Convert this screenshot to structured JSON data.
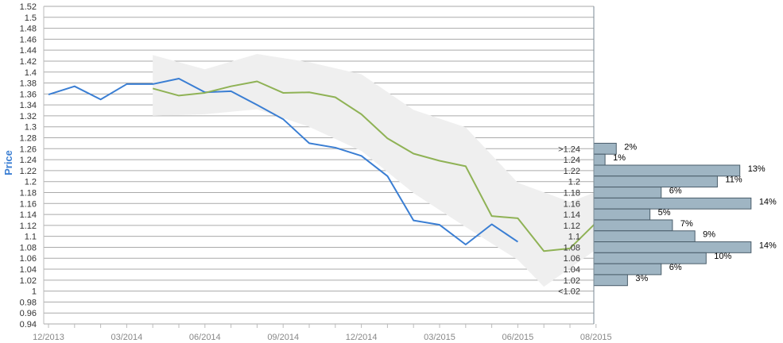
{
  "chart_data": {
    "type": "line",
    "ylabel": "Price",
    "ylim": [
      0.94,
      1.52
    ],
    "y_ticks": [
      "1.52",
      "1.5",
      "1.48",
      "1.46",
      "1.44",
      "1.42",
      "1.4",
      "1.38",
      "1.36",
      "1.34",
      "1.32",
      "1.3",
      "1.28",
      "1.26",
      "1.24",
      "1.22",
      "1.2",
      "1.18",
      "1.16",
      "1.14",
      "1.12",
      "1.1",
      "1.08",
      "1.06",
      "1.04",
      "1.02",
      "1",
      "0.98",
      "0.96",
      "0.94"
    ],
    "x_ticks": [
      "12/2013",
      "03/2014",
      "06/2014",
      "09/2014",
      "12/2014",
      "03/2015",
      "06/2015",
      "08/2015"
    ],
    "grid": true,
    "colors": {
      "actual": "#3a7ed3",
      "forecast": "#8fb255",
      "band": "#efefef",
      "bars": "#9fb5c3",
      "bar_border": "#4a5d6a",
      "grid": "#aaaaaa"
    },
    "series": [
      {
        "role": "actual",
        "points": [
          [
            0,
            1.359
          ],
          [
            1,
            1.374
          ],
          [
            2,
            1.35
          ],
          [
            3,
            1.378
          ],
          [
            4,
            1.378
          ],
          [
            5,
            1.388
          ],
          [
            6,
            1.363
          ],
          [
            7,
            1.365
          ],
          [
            8,
            1.34
          ],
          [
            9,
            1.314
          ],
          [
            10,
            1.27
          ],
          [
            11,
            1.262
          ],
          [
            12,
            1.247
          ],
          [
            13,
            1.21
          ],
          [
            14,
            1.129
          ],
          [
            15,
            1.121
          ],
          [
            16,
            1.085
          ],
          [
            17,
            1.122
          ],
          [
            18,
            1.09
          ]
        ]
      },
      {
        "role": "forecast",
        "points": [
          [
            4,
            1.37
          ],
          [
            5,
            1.357
          ],
          [
            6,
            1.362
          ],
          [
            7,
            1.374
          ],
          [
            8,
            1.383
          ],
          [
            9,
            1.362
          ],
          [
            10,
            1.363
          ],
          [
            11,
            1.354
          ],
          [
            12,
            1.323
          ],
          [
            13,
            1.279
          ],
          [
            14,
            1.251
          ],
          [
            15,
            1.238
          ],
          [
            16,
            1.228
          ],
          [
            17,
            1.137
          ],
          [
            18,
            1.133
          ],
          [
            19,
            1.073
          ],
          [
            20,
            1.078
          ],
          [
            21,
            1.125
          ]
        ]
      }
    ],
    "band": {
      "upper": [
        [
          4,
          1.431
        ],
        [
          6,
          1.405
        ],
        [
          8,
          1.433
        ],
        [
          10,
          1.418
        ],
        [
          12,
          1.396
        ],
        [
          14,
          1.331
        ],
        [
          16,
          1.299
        ],
        [
          18,
          1.198
        ],
        [
          20,
          1.163
        ],
        [
          21,
          1.181
        ]
      ],
      "lower": [
        [
          4,
          1.32
        ],
        [
          6,
          1.323
        ],
        [
          8,
          1.332
        ],
        [
          10,
          1.3
        ],
        [
          12,
          1.256
        ],
        [
          14,
          1.179
        ],
        [
          16,
          1.117
        ],
        [
          18,
          1.057
        ],
        [
          19,
          1.008
        ],
        [
          21,
          1.076
        ]
      ]
    },
    "distribution": {
      "categories": [
        ">1.24",
        "1.24",
        "1.22",
        "1.2",
        "1.18",
        "1.16",
        "1.14",
        "1.12",
        "1.1",
        "1.08",
        "1.06",
        "1.04",
        "1.02",
        "<1.02"
      ],
      "values": [
        2,
        1,
        13,
        11,
        6,
        14,
        5,
        7,
        9,
        14,
        10,
        6,
        3,
        null
      ],
      "labels": [
        "2%",
        "1%",
        "13%",
        "11%",
        "6%",
        "14%",
        "5%",
        "7%",
        "9%",
        "14%",
        "10%",
        "6%",
        "3%",
        ""
      ]
    }
  }
}
